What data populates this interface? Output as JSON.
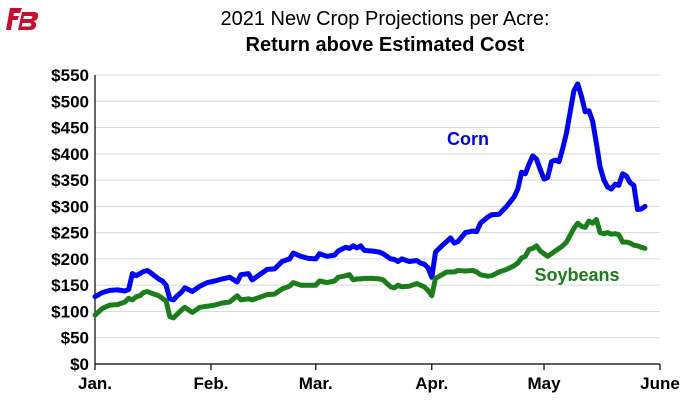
{
  "logo": {
    "text": "FB",
    "color": "#c8102e"
  },
  "chart_data": {
    "type": "line",
    "title": "2021 New Crop Projections per Acre:",
    "subtitle": "Return above Estimated Cost",
    "xlabel": "",
    "ylabel": "",
    "x_ticks": [
      "Jan.",
      "Feb.",
      "Mar.",
      "Apr.",
      "May",
      "June"
    ],
    "x_tick_days": [
      0,
      31,
      59,
      90,
      120,
      151
    ],
    "y_ticks": [
      "$0",
      "$50",
      "$100",
      "$150",
      "$200",
      "$250",
      "$300",
      "$350",
      "$400",
      "$450",
      "$500",
      "$550"
    ],
    "xlim": [
      0,
      151
    ],
    "ylim": [
      0,
      550
    ],
    "grid": "horizontal",
    "series": [
      {
        "name": "Corn",
        "color": "#0000ff",
        "points": [
          [
            0,
            128
          ],
          [
            2,
            136
          ],
          [
            4,
            140
          ],
          [
            6,
            141
          ],
          [
            8,
            139
          ],
          [
            9,
            142
          ],
          [
            10,
            172
          ],
          [
            11,
            168
          ],
          [
            12,
            172
          ],
          [
            13,
            176
          ],
          [
            14,
            178
          ],
          [
            15,
            173
          ],
          [
            17,
            162
          ],
          [
            18,
            158
          ],
          [
            19,
            150
          ],
          [
            20,
            124
          ],
          [
            21,
            122
          ],
          [
            22,
            130
          ],
          [
            23,
            136
          ],
          [
            24,
            145
          ],
          [
            26,
            138
          ],
          [
            28,
            148
          ],
          [
            30,
            155
          ],
          [
            32,
            158
          ],
          [
            34,
            162
          ],
          [
            36,
            165
          ],
          [
            38,
            156
          ],
          [
            39,
            170
          ],
          [
            41,
            172
          ],
          [
            42,
            160
          ],
          [
            44,
            170
          ],
          [
            46,
            180
          ],
          [
            48,
            181
          ],
          [
            50,
            195
          ],
          [
            52,
            200
          ],
          [
            53,
            211
          ],
          [
            55,
            205
          ],
          [
            57,
            201
          ],
          [
            59,
            200
          ],
          [
            60,
            210
          ],
          [
            62,
            205
          ],
          [
            64,
            207
          ],
          [
            65,
            215
          ],
          [
            67,
            222
          ],
          [
            68,
            220
          ],
          [
            69,
            225
          ],
          [
            70,
            221
          ],
          [
            71,
            225
          ],
          [
            72,
            216
          ],
          [
            74,
            215
          ],
          [
            76,
            213
          ],
          [
            77,
            210
          ],
          [
            79,
            200
          ],
          [
            80,
            199
          ],
          [
            81,
            195
          ],
          [
            82,
            200
          ],
          [
            84,
            195
          ],
          [
            86,
            197
          ],
          [
            87,
            192
          ],
          [
            88,
            190
          ],
          [
            89,
            183
          ],
          [
            90,
            165
          ],
          [
            91,
            213
          ],
          [
            93,
            227
          ],
          [
            94,
            233
          ],
          [
            95,
            240
          ],
          [
            96,
            230
          ],
          [
            97,
            233
          ],
          [
            99,
            250
          ],
          [
            101,
            253
          ],
          [
            102,
            252
          ],
          [
            103,
            268
          ],
          [
            105,
            280
          ],
          [
            106,
            284
          ],
          [
            108,
            285
          ],
          [
            110,
            300
          ],
          [
            112,
            318
          ],
          [
            113,
            333
          ],
          [
            114,
            365
          ],
          [
            115,
            362
          ],
          [
            116,
            380
          ],
          [
            117,
            396
          ],
          [
            118,
            390
          ],
          [
            119,
            370
          ],
          [
            120,
            352
          ],
          [
            121,
            355
          ],
          [
            122,
            385
          ],
          [
            123,
            388
          ],
          [
            124,
            385
          ],
          [
            125,
            410
          ],
          [
            126,
            440
          ],
          [
            127,
            480
          ],
          [
            128,
            520
          ],
          [
            129,
            533
          ],
          [
            130,
            510
          ],
          [
            131,
            480
          ],
          [
            132,
            482
          ],
          [
            133,
            462
          ],
          [
            134,
            420
          ],
          [
            135,
            375
          ],
          [
            136,
            350
          ],
          [
            137,
            337
          ],
          [
            138,
            333
          ],
          [
            139,
            342
          ],
          [
            140,
            340
          ],
          [
            141,
            362
          ],
          [
            142,
            358
          ],
          [
            143,
            345
          ],
          [
            144,
            340
          ],
          [
            145,
            294
          ],
          [
            146,
            295
          ],
          [
            147,
            300
          ]
        ]
      },
      {
        "name": "Soybeans",
        "color": "#1a7f1a",
        "points": [
          [
            0,
            93
          ],
          [
            2,
            106
          ],
          [
            4,
            112
          ],
          [
            6,
            113
          ],
          [
            8,
            118
          ],
          [
            9,
            125
          ],
          [
            10,
            122
          ],
          [
            11,
            128
          ],
          [
            12,
            130
          ],
          [
            13,
            136
          ],
          [
            14,
            138
          ],
          [
            15,
            135
          ],
          [
            17,
            130
          ],
          [
            18,
            125
          ],
          [
            19,
            120
          ],
          [
            20,
            90
          ],
          [
            21,
            88
          ],
          [
            22,
            95
          ],
          [
            23,
            102
          ],
          [
            24,
            108
          ],
          [
            26,
            98
          ],
          [
            28,
            108
          ],
          [
            30,
            110
          ],
          [
            32,
            112
          ],
          [
            34,
            116
          ],
          [
            36,
            118
          ],
          [
            38,
            130
          ],
          [
            39,
            122
          ],
          [
            41,
            124
          ],
          [
            42,
            122
          ],
          [
            44,
            127
          ],
          [
            46,
            132
          ],
          [
            48,
            133
          ],
          [
            50,
            143
          ],
          [
            52,
            148
          ],
          [
            53,
            155
          ],
          [
            55,
            150
          ],
          [
            57,
            150
          ],
          [
            59,
            150
          ],
          [
            60,
            158
          ],
          [
            62,
            155
          ],
          [
            64,
            158
          ],
          [
            65,
            165
          ],
          [
            67,
            168
          ],
          [
            68,
            170
          ],
          [
            69,
            160
          ],
          [
            70,
            162
          ],
          [
            71,
            162
          ],
          [
            72,
            163
          ],
          [
            74,
            163
          ],
          [
            76,
            162
          ],
          [
            77,
            160
          ],
          [
            79,
            147
          ],
          [
            80,
            145
          ],
          [
            81,
            150
          ],
          [
            82,
            147
          ],
          [
            84,
            148
          ],
          [
            86,
            153
          ],
          [
            87,
            150
          ],
          [
            88,
            147
          ],
          [
            89,
            140
          ],
          [
            90,
            130
          ],
          [
            91,
            163
          ],
          [
            93,
            171
          ],
          [
            94,
            175
          ],
          [
            95,
            175
          ],
          [
            96,
            175
          ],
          [
            97,
            178
          ],
          [
            99,
            177
          ],
          [
            101,
            178
          ],
          [
            102,
            175
          ],
          [
            103,
            170
          ],
          [
            105,
            167
          ],
          [
            106,
            168
          ],
          [
            108,
            175
          ],
          [
            110,
            180
          ],
          [
            112,
            187
          ],
          [
            113,
            192
          ],
          [
            114,
            202
          ],
          [
            115,
            205
          ],
          [
            116,
            218
          ],
          [
            117,
            220
          ],
          [
            118,
            225
          ],
          [
            119,
            215
          ],
          [
            120,
            210
          ],
          [
            121,
            205
          ],
          [
            122,
            210
          ],
          [
            123,
            215
          ],
          [
            124,
            220
          ],
          [
            125,
            225
          ],
          [
            126,
            232
          ],
          [
            127,
            245
          ],
          [
            128,
            258
          ],
          [
            129,
            268
          ],
          [
            130,
            262
          ],
          [
            131,
            260
          ],
          [
            132,
            272
          ],
          [
            133,
            268
          ],
          [
            134,
            275
          ],
          [
            135,
            250
          ],
          [
            136,
            248
          ],
          [
            137,
            250
          ],
          [
            138,
            247
          ],
          [
            139,
            248
          ],
          [
            140,
            246
          ],
          [
            141,
            232
          ],
          [
            142,
            232
          ],
          [
            143,
            230
          ],
          [
            144,
            226
          ],
          [
            145,
            225
          ],
          [
            146,
            222
          ],
          [
            147,
            220
          ]
        ]
      }
    ]
  }
}
